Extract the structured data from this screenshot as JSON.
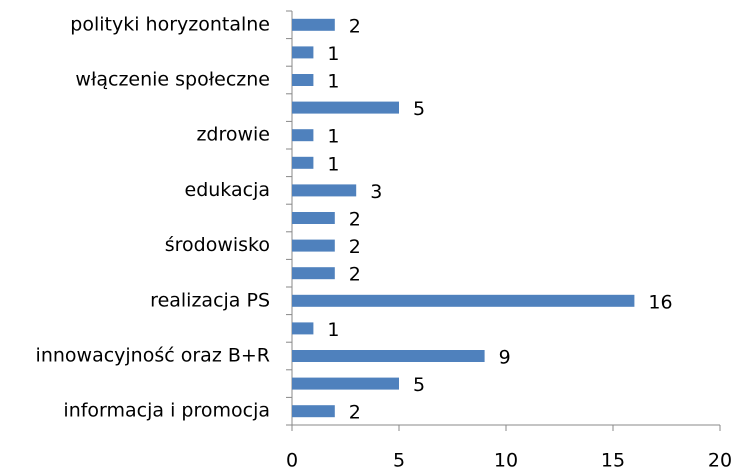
{
  "chart_data": {
    "type": "hbar",
    "categories": [
      "polityki horyzontalne",
      null,
      "włączenie społeczne",
      null,
      "zdrowie",
      null,
      "edukacja",
      null,
      "środowisko",
      null,
      "realizacja PS",
      null,
      "innowacyjność oraz B+R",
      null,
      "informacja i promocja"
    ],
    "values": [
      2,
      1,
      1,
      5,
      1,
      1,
      3,
      2,
      2,
      2,
      16,
      1,
      9,
      5,
      2
    ],
    "color": "#4f81bd",
    "xlim": [
      0,
      20
    ],
    "xticks": [
      0,
      5,
      10,
      15,
      20
    ],
    "grid": false
  }
}
